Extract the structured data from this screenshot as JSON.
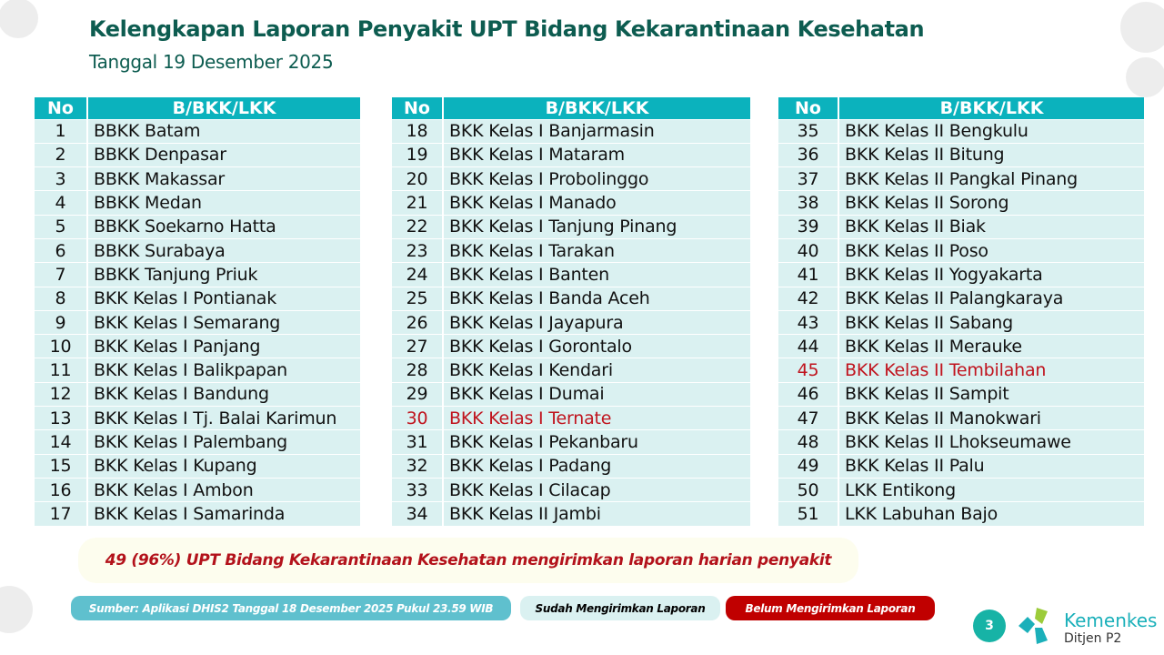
{
  "header": {
    "title": "Kelengkapan Laporan Penyakit UPT Bidang Kekarantinaan Kesehatan",
    "subtitle": "Tanggal 19 Desember 2025"
  },
  "table_headers": {
    "no": "No",
    "name": "B/BKK/LKK"
  },
  "tables": [
    [
      {
        "no": "1",
        "name": "BBKK Batam"
      },
      {
        "no": "2",
        "name": "BBKK Denpasar"
      },
      {
        "no": "3",
        "name": "BBKK Makassar"
      },
      {
        "no": "4",
        "name": "BBKK Medan"
      },
      {
        "no": "5",
        "name": "BBKK Soekarno Hatta"
      },
      {
        "no": "6",
        "name": "BBKK Surabaya"
      },
      {
        "no": "7",
        "name": "BBKK Tanjung Priuk"
      },
      {
        "no": "8",
        "name": "BKK Kelas I Pontianak"
      },
      {
        "no": "9",
        "name": "BKK Kelas I Semarang"
      },
      {
        "no": "10",
        "name": "BKK Kelas I Panjang"
      },
      {
        "no": "11",
        "name": "BKK Kelas I Balikpapan"
      },
      {
        "no": "12",
        "name": "BKK Kelas I Bandung"
      },
      {
        "no": "13",
        "name": "BKK Kelas I Tj. Balai Karimun"
      },
      {
        "no": "14",
        "name": "BKK Kelas I Palembang"
      },
      {
        "no": "15",
        "name": "BKK Kelas I Kupang"
      },
      {
        "no": "16",
        "name": "BKK Kelas I Ambon"
      },
      {
        "no": "17",
        "name": "BKK Kelas I Samarinda"
      }
    ],
    [
      {
        "no": "18",
        "name": "BKK Kelas I Banjarmasin"
      },
      {
        "no": "19",
        "name": "BKK Kelas I Mataram"
      },
      {
        "no": "20",
        "name": "BKK Kelas I Probolinggo"
      },
      {
        "no": "21",
        "name": "BKK Kelas I Manado"
      },
      {
        "no": "22",
        "name": "BKK Kelas I Tanjung Pinang"
      },
      {
        "no": "23",
        "name": "BKK Kelas I Tarakan"
      },
      {
        "no": "24",
        "name": "BKK Kelas I Banten"
      },
      {
        "no": "25",
        "name": "BKK Kelas I Banda Aceh"
      },
      {
        "no": "26",
        "name": "BKK Kelas I Jayapura"
      },
      {
        "no": "27",
        "name": "BKK Kelas I Gorontalo"
      },
      {
        "no": "28",
        "name": "BKK Kelas I Kendari"
      },
      {
        "no": "29",
        "name": "BKK Kelas I Dumai"
      },
      {
        "no": "30",
        "name": "BKK Kelas I Ternate",
        "status": "belum"
      },
      {
        "no": "31",
        "name": "BKK Kelas I Pekanbaru"
      },
      {
        "no": "32",
        "name": "BKK Kelas I Padang"
      },
      {
        "no": "33",
        "name": "BKK Kelas I Cilacap"
      },
      {
        "no": "34",
        "name": "BKK  Kelas II Jambi"
      }
    ],
    [
      {
        "no": "35",
        "name": "BKK Kelas II Bengkulu"
      },
      {
        "no": "36",
        "name": "BKK Kelas II Bitung"
      },
      {
        "no": "37",
        "name": "BKK Kelas II Pangkal Pinang"
      },
      {
        "no": "38",
        "name": "BKK Kelas II Sorong"
      },
      {
        "no": "39",
        "name": "BKK Kelas II Biak"
      },
      {
        "no": "40",
        "name": "BKK Kelas II Poso"
      },
      {
        "no": "41",
        "name": "BKK Kelas II Yogyakarta"
      },
      {
        "no": "42",
        "name": "BKK Kelas II Palangkaraya"
      },
      {
        "no": "43",
        "name": "BKK Kelas II Sabang"
      },
      {
        "no": "44",
        "name": "BKK Kelas II Merauke"
      },
      {
        "no": "45",
        "name": "BKK Kelas II Tembilahan",
        "status": "belum"
      },
      {
        "no": "46",
        "name": "BKK Kelas II Sampit"
      },
      {
        "no": "47",
        "name": "BKK Kelas II Manokwari"
      },
      {
        "no": "48",
        "name": "BKK Kelas II Lhokseumawe"
      },
      {
        "no": "49",
        "name": "BKK Kelas II Palu"
      },
      {
        "no": "50",
        "name": "LKK Entikong"
      },
      {
        "no": "51",
        "name": "LKK Labuhan Bajo"
      }
    ]
  ],
  "summary": "49 (96%) UPT Bidang Kekarantinaan Kesehatan mengirimkan laporan harian penyakit",
  "legend": {
    "source": "Sumber: Aplikasi DHIS2 Tanggal  18 Desember 2025 Pukul 23.59 WIB",
    "done": "Sudah Mengirimkan Laporan",
    "not_done": "Belum Mengirimkan Laporan"
  },
  "colors": {
    "header": "#0bb2bd",
    "row": "#daf1f1",
    "not_reported": "#c00000",
    "title": "#0d5c50"
  },
  "footer": {
    "page": "3",
    "brand": "Kemenkes",
    "brand_sub": "Ditjen P2"
  }
}
